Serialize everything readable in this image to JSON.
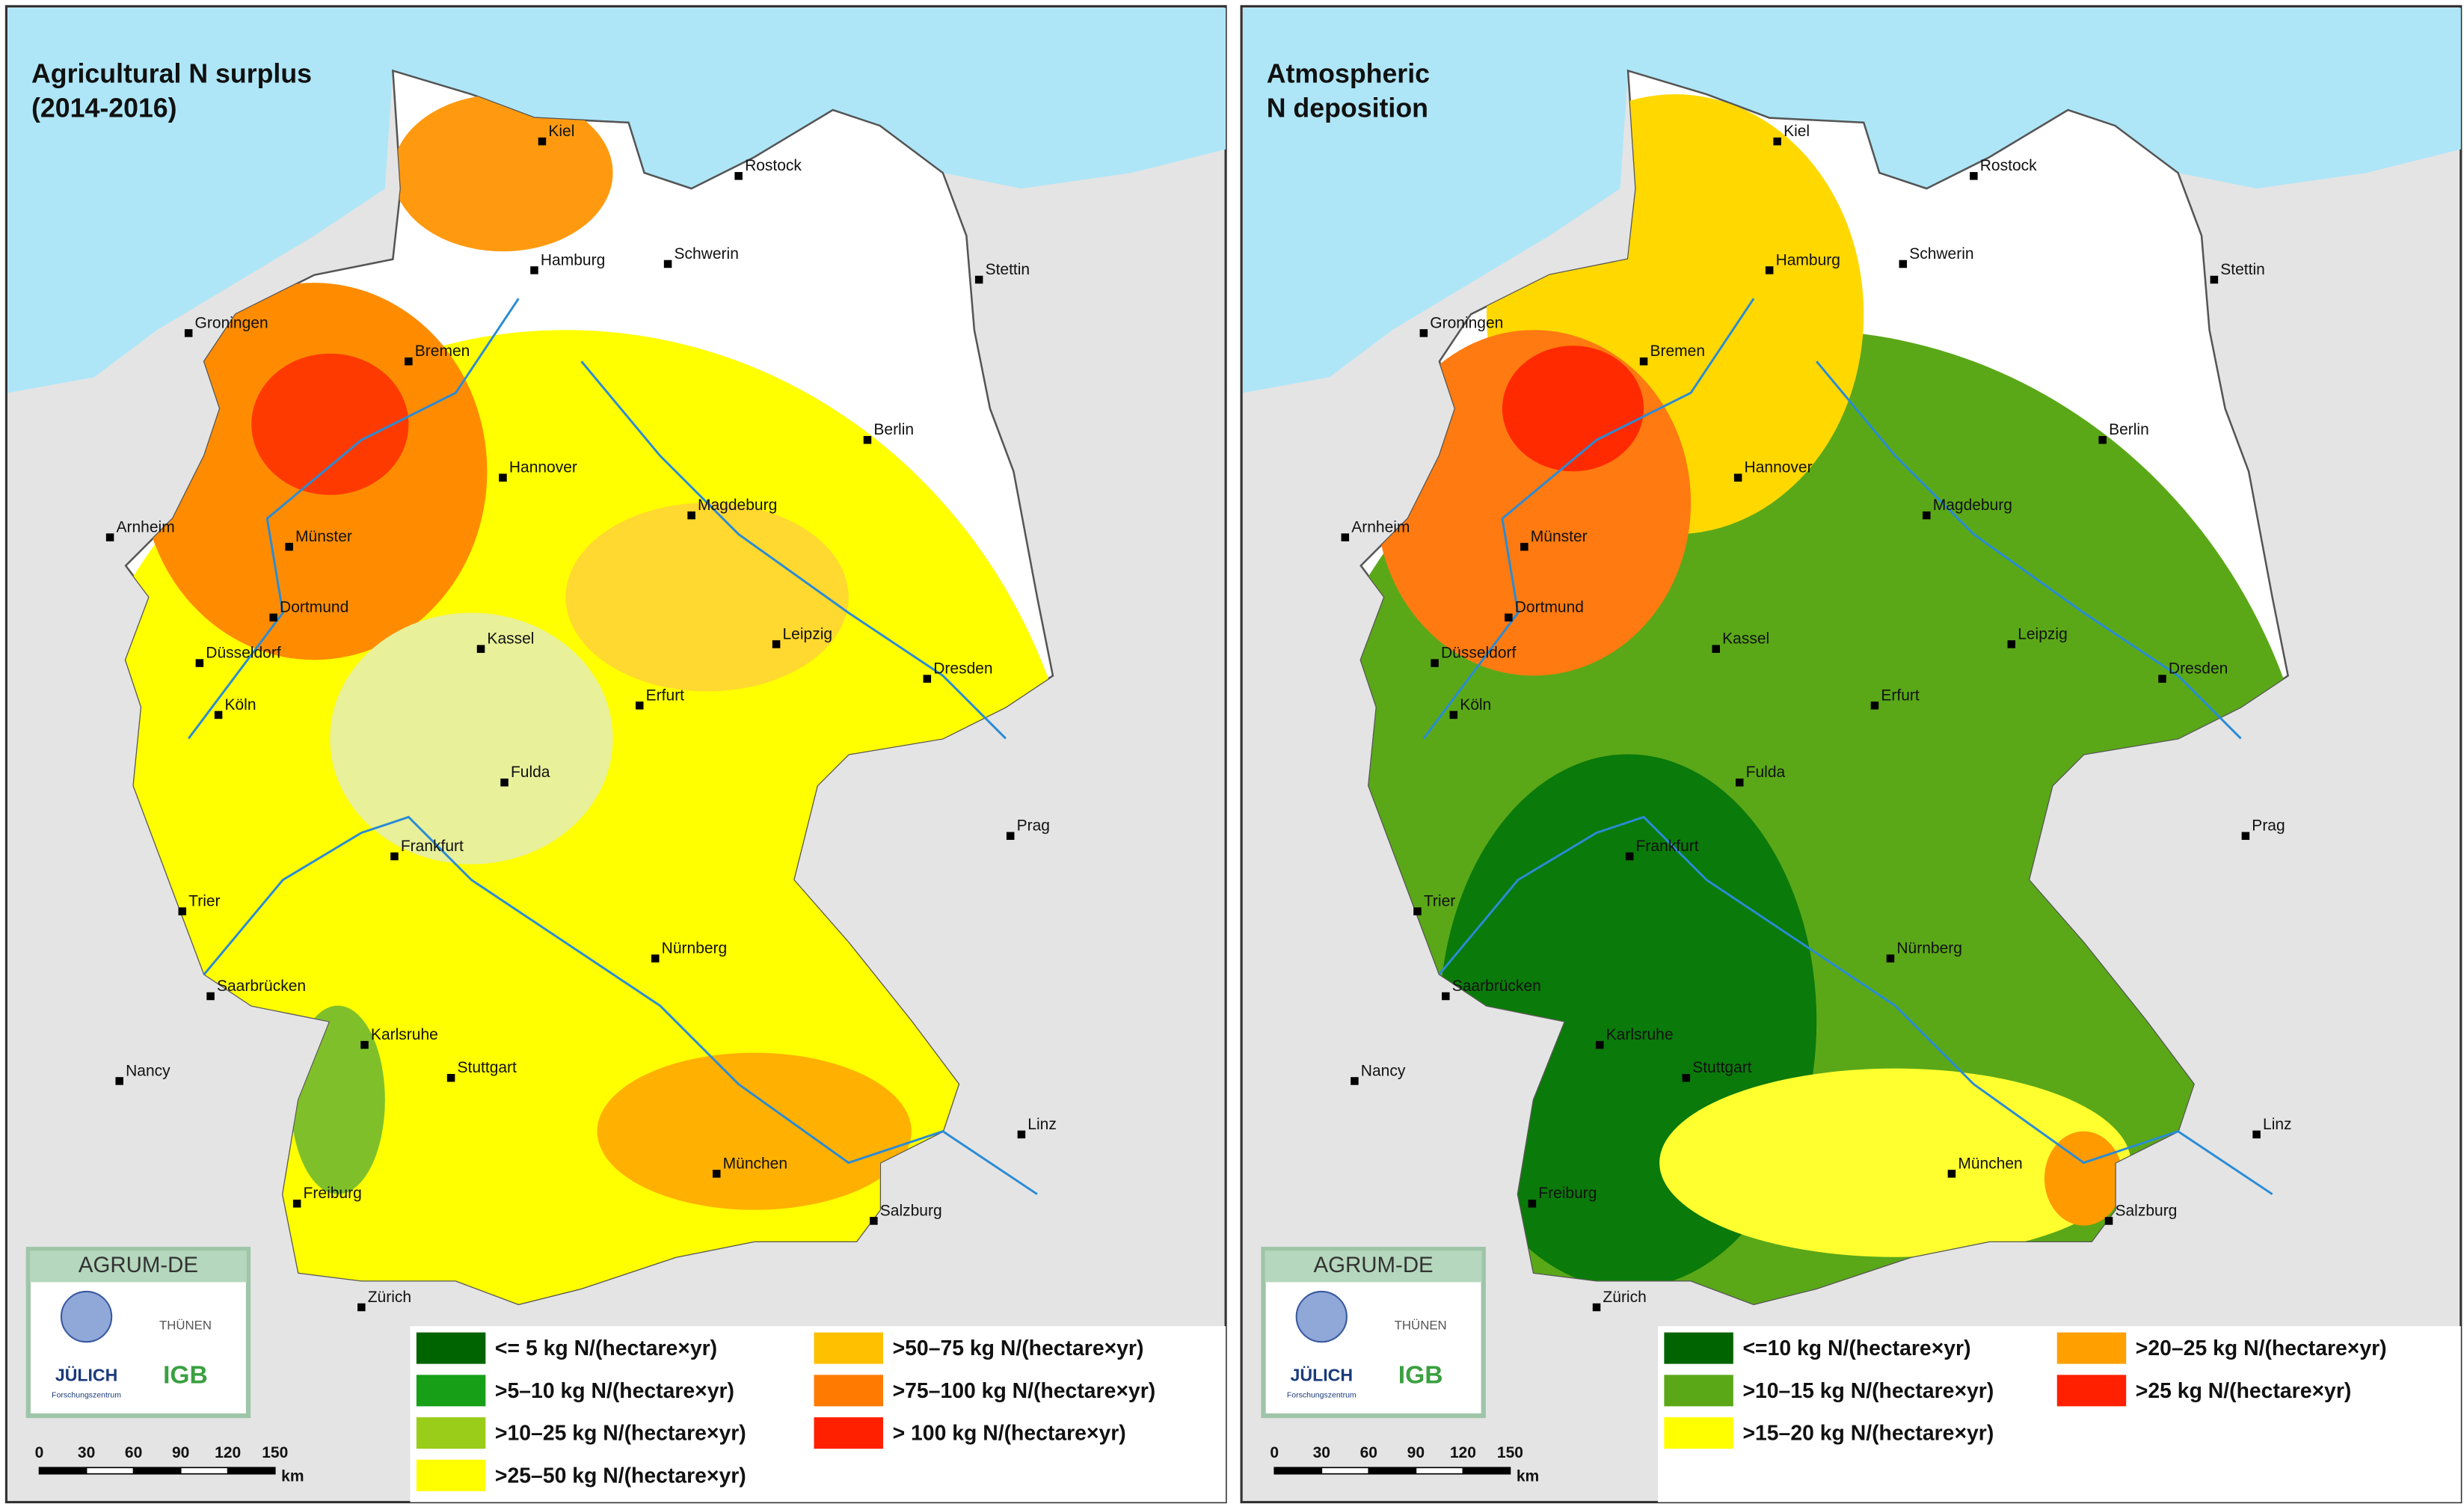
{
  "panels": [
    {
      "title": [
        "Agricultural N surplus",
        "(2014-2016)"
      ],
      "legend": [
        {
          "label": "<= 5 kg N/(hectare×yr)",
          "color": "#006400"
        },
        {
          "label": ">5–10 kg N/(hectare×yr)",
          "color": "#17a017"
        },
        {
          "label": ">10–25 kg N/(hectare×yr)",
          "color": "#9acd1a"
        },
        {
          "label": ">25–50 kg N/(hectare×yr)",
          "color": "#ffff00"
        },
        {
          "label": ">50–75 kg N/(hectare×yr)",
          "color": "#ffc000"
        },
        {
          "label": ">75–100 kg N/(hectare×yr)",
          "color": "#ff7a00"
        },
        {
          "label": "> 100 kg N/(hectare×yr)",
          "color": "#ff2000"
        }
      ]
    },
    {
      "title": [
        "Atmospheric",
        "N deposition"
      ],
      "legend": [
        {
          "label": "<=10 kg N/(hectare×yr)",
          "color": "#006400"
        },
        {
          "label": ">10–15 kg N/(hectare×yr)",
          "color": "#5aa818"
        },
        {
          "label": ">15–20 kg N/(hectare×yr)",
          "color": "#ffff00"
        },
        {
          "label": ">20–25 kg N/(hectare×yr)",
          "color": "#ffa000"
        },
        {
          "label": ">25 kg N/(hectare×yr)",
          "color": "#ff2000"
        }
      ]
    }
  ],
  "cities": [
    "Kiel",
    "Rostock",
    "Schwerin",
    "Hamburg",
    "Stettin",
    "Groningen",
    "Bremen",
    "Berlin",
    "Hannover",
    "Arnheim",
    "Münster",
    "Magdeburg",
    "Dortmund",
    "Düsseldorf",
    "Kassel",
    "Leipzig",
    "Köln",
    "Erfurt",
    "Dresden",
    "Fulda",
    "Frankfurt",
    "Prag",
    "Trier",
    "Nürnberg",
    "Saarbrücken",
    "Karlsruhe",
    "Stuttgart",
    "Nancy",
    "Linz",
    "München",
    "Freiburg",
    "Salzburg",
    "Zürich"
  ],
  "scale_bar": {
    "ticks": [
      "0",
      "30",
      "60",
      "90",
      "120",
      "150"
    ],
    "unit": "km"
  },
  "logos": {
    "project": "AGRUM-DE",
    "thuenen": "THÜNEN",
    "juelich": "JÜLICH",
    "juelich_sub": "Forschungszentrum",
    "igb": "IGB"
  }
}
